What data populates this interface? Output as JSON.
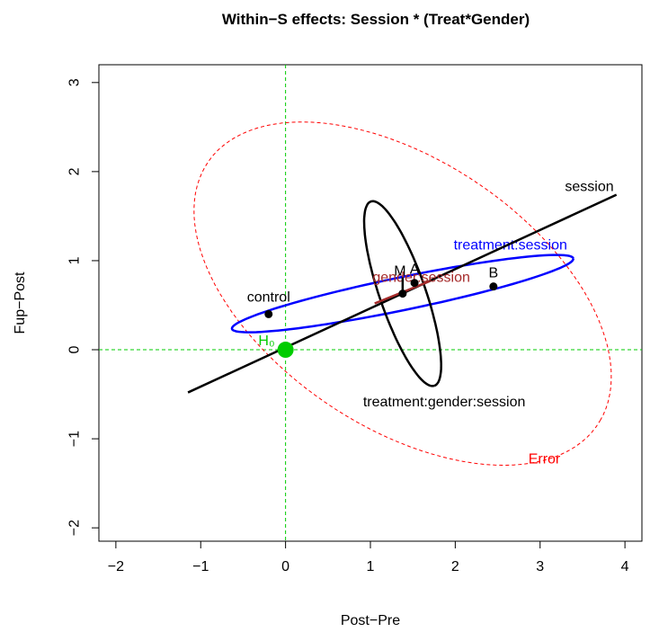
{
  "chart_data": {
    "type": "scatter",
    "title": "Within−S effects: Session * (Treat*Gender)",
    "xlabel": "Post−Pre",
    "ylabel": "Fup−Post",
    "xlim": [
      -2.2,
      4.2
    ],
    "ylim": [
      -2.15,
      3.2
    ],
    "x_ticks": [
      -2,
      -1,
      0,
      1,
      2,
      3,
      4
    ],
    "x_tick_labels": [
      "−2",
      "−1",
      "0",
      "1",
      "2",
      "3",
      "4"
    ],
    "y_ticks": [
      -2,
      -1,
      0,
      1,
      2,
      3
    ],
    "y_tick_labels": [
      "−2",
      "−1",
      "0",
      "1",
      "2",
      "3"
    ],
    "grid": false,
    "reference_lines": {
      "x": 0,
      "y": 0,
      "color": "#00cc00",
      "style": "dashed"
    },
    "points": [
      {
        "label": "control",
        "x": -0.2,
        "y": 0.4
      },
      {
        "label": "A",
        "x": 1.52,
        "y": 0.75
      },
      {
        "label": "B",
        "x": 2.45,
        "y": 0.71
      },
      {
        "label": "M",
        "x": 1.38,
        "y": 0.63
      }
    ],
    "ellipses": [
      {
        "label": "Error",
        "color": "#ff0000",
        "style": "dashed",
        "center": [
          1.38,
          0.63
        ],
        "a": 2.73,
        "b": 1.52,
        "angle_deg": -31.5,
        "label_x": 3.05,
        "label_y": -1.22
      },
      {
        "label": "treatment:session",
        "color": "#0000ff",
        "style": "solid",
        "center": [
          1.38,
          0.63
        ],
        "a": 2.05,
        "b": 0.185,
        "angle_deg": 11.1,
        "label_x": 2.65,
        "label_y": 1.18
      },
      {
        "label": "treatment:gender:session",
        "color": "#000000",
        "style": "solid",
        "center": [
          1.38,
          0.63
        ],
        "a": 1.1,
        "b": 0.27,
        "angle_deg": -70.0,
        "label_x": 1.87,
        "label_y": -0.58
      }
    ],
    "lines": [
      {
        "label": "session",
        "color": "#000000",
        "from": [
          -1.15,
          -0.48
        ],
        "to": [
          3.9,
          1.74
        ],
        "label_x": 3.58,
        "label_y": 1.84
      },
      {
        "label": "gender:session",
        "color": "#a52a2a",
        "from": [
          1.05,
          0.52
        ],
        "to": [
          1.7,
          0.77
        ],
        "label_x": 1.6,
        "label_y": 0.82
      }
    ],
    "hypothesis": {
      "label": "H₀",
      "x": 0,
      "y": 0,
      "color": "#00cc00"
    }
  }
}
